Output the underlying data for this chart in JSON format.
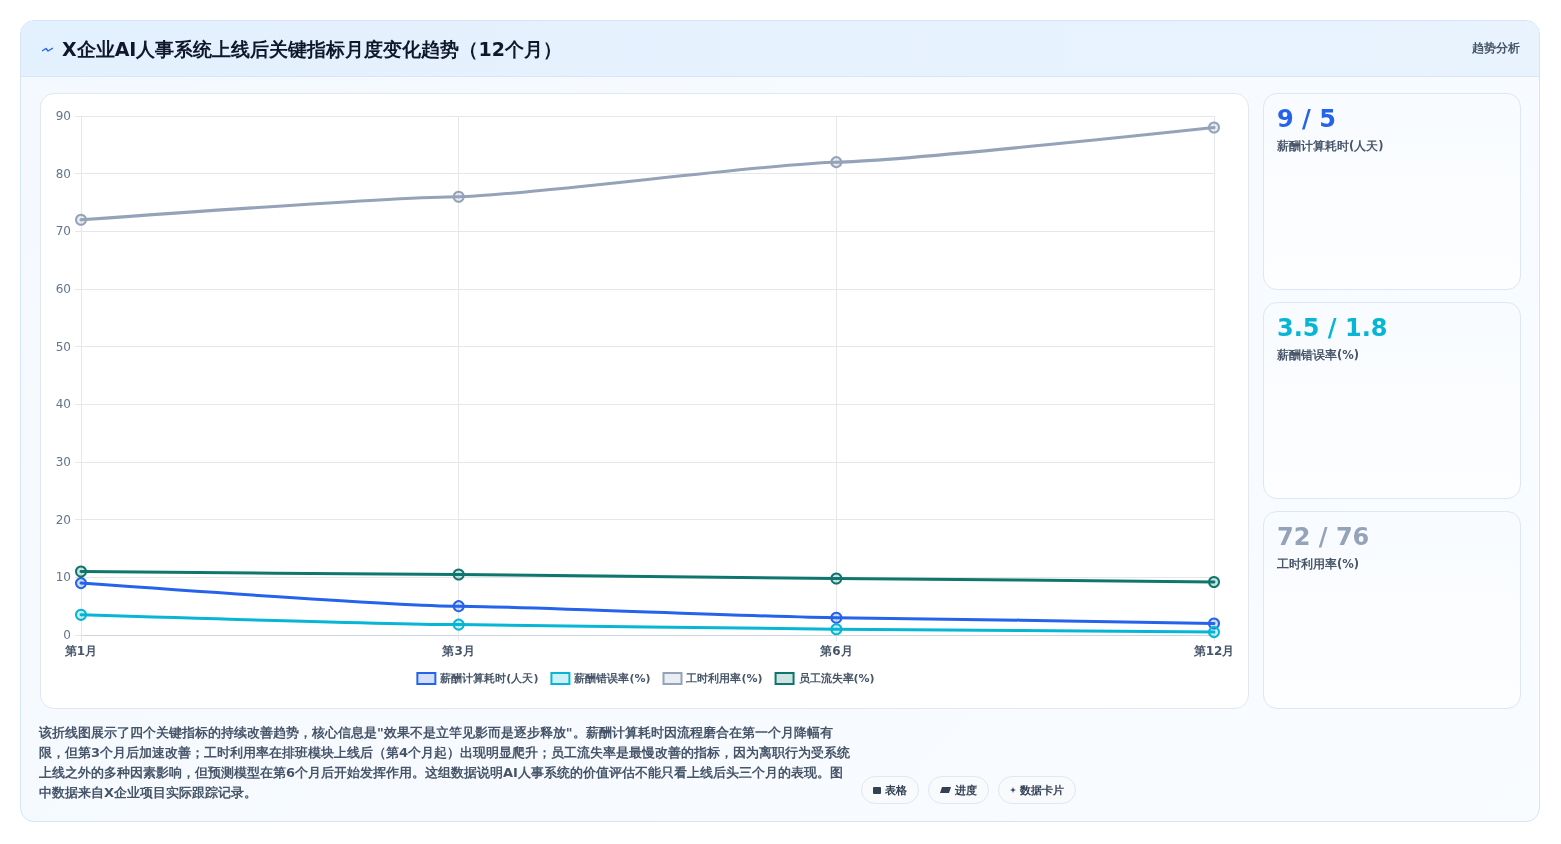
{
  "chart_data": [
    {
      "type": "line",
      "title": "X企业AI人事系统上线后关键指标月度变化趋势（12个月）",
      "categories": [
        "第1月",
        "第3月",
        "第6月",
        "第12月"
      ],
      "series": [
        {
          "name": "薪酬计算耗时(人天)",
          "color": "#2563eb",
          "values": [
            9,
            5,
            3,
            2
          ]
        },
        {
          "name": "薪酬错误率(%)",
          "color": "#06b6d4",
          "values": [
            3.5,
            1.8,
            1,
            0.5
          ]
        },
        {
          "name": "工时利用率(%)",
          "color": "#94a3b8",
          "values": [
            72,
            76,
            82,
            88
          ]
        },
        {
          "name": "员工流失率(%)",
          "color": "#0f766e",
          "values": [
            11,
            10.5,
            9.8,
            9.2
          ]
        }
      ],
      "ylim": [
        0,
        90
      ],
      "yticks": [
        0,
        10,
        20,
        30,
        40,
        50,
        60,
        70,
        80,
        90
      ],
      "grid": true,
      "legend": "bottom",
      "marker": "circle",
      "line_style": "solid",
      "annotations": [
        "该折线图展示了四个关键指标的持续改善趋势，核心信息是\"效果不是立竿见影而是逐步释放\"。薪酬计算耗时因流程磨合在第一个月降幅有限，但第3个月后加速改善；工时利用率在排班模块上线后（第4个月起）出现明显爬升；员工流失率是最慢改善的指标，因为离职行为受系统上线之外的多种因素影响，但预测模型在第6个月后开始发挥作用。这组数据说明AI人事系统的价值评估不能只看上线后头三个月的表现。图中数据来自X企业项目实际跟踪记录。",
        "表格",
        "进度",
        "数据卡片"
      ]
    },
    {
      "type": "other",
      "title": "9 / 5",
      "subtitle": "薪酬计算耗时(人天)",
      "color": "#2563eb"
    },
    {
      "type": "other",
      "title": "3.5 / 1.8",
      "subtitle": "薪酬错误率(%)",
      "color": "#06b6d4"
    },
    {
      "type": "other",
      "title": "72 / 76",
      "subtitle": "工时利用率(%)",
      "color": "#94a3b8"
    },
    {
      "type": "other",
      "title": "趋势分析"
    }
  ]
}
